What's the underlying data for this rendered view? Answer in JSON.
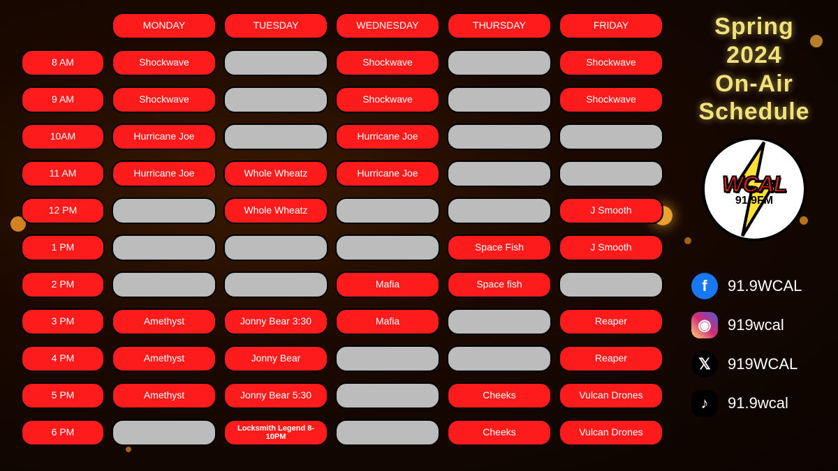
{
  "title_lines": [
    "Spring 2024",
    "On-Air",
    "Schedule"
  ],
  "logo": {
    "name": "WCAL",
    "freq": "91.9FM"
  },
  "days": [
    "MONDAY",
    "TUESDAY",
    "WEDNESDAY",
    "THURSDAY",
    "FRIDAY"
  ],
  "times": [
    "8 AM",
    "9 AM",
    "10AM",
    "11 AM",
    "12 PM",
    "1 PM",
    "2 PM",
    "3 PM",
    "4 PM",
    "5 PM",
    "6 PM"
  ],
  "rows": [
    [
      {
        "t": "Shockwave",
        "c": "red"
      },
      {
        "t": "",
        "c": "grey"
      },
      {
        "t": "Shockwave",
        "c": "red"
      },
      {
        "t": "",
        "c": "grey"
      },
      {
        "t": "Shockwave",
        "c": "red"
      }
    ],
    [
      {
        "t": "Shockwave",
        "c": "red"
      },
      {
        "t": "",
        "c": "grey"
      },
      {
        "t": "Shockwave",
        "c": "red"
      },
      {
        "t": "",
        "c": "grey"
      },
      {
        "t": "Shockwave",
        "c": "red"
      }
    ],
    [
      {
        "t": "Hurricane Joe",
        "c": "red"
      },
      {
        "t": "",
        "c": "grey"
      },
      {
        "t": "Hurricane Joe",
        "c": "red"
      },
      {
        "t": "",
        "c": "grey"
      },
      {
        "t": "",
        "c": "grey"
      }
    ],
    [
      {
        "t": "Hurricane Joe",
        "c": "red"
      },
      {
        "t": "Whole Wheatz",
        "c": "red"
      },
      {
        "t": "Hurricane Joe",
        "c": "red"
      },
      {
        "t": "",
        "c": "grey"
      },
      {
        "t": "",
        "c": "grey"
      }
    ],
    [
      {
        "t": "",
        "c": "grey"
      },
      {
        "t": "Whole Wheatz",
        "c": "red"
      },
      {
        "t": "",
        "c": "grey"
      },
      {
        "t": "",
        "c": "grey"
      },
      {
        "t": "J Smooth",
        "c": "red"
      }
    ],
    [
      {
        "t": "",
        "c": "grey"
      },
      {
        "t": "",
        "c": "grey"
      },
      {
        "t": "",
        "c": "grey"
      },
      {
        "t": "Space Fish",
        "c": "red"
      },
      {
        "t": "J Smooth",
        "c": "red"
      }
    ],
    [
      {
        "t": "",
        "c": "grey"
      },
      {
        "t": "",
        "c": "grey"
      },
      {
        "t": "Mafia",
        "c": "red"
      },
      {
        "t": "Space fish",
        "c": "red"
      },
      {
        "t": "",
        "c": "grey"
      }
    ],
    [
      {
        "t": "Amethyst",
        "c": "red"
      },
      {
        "t": "Jonny Bear 3:30",
        "c": "red"
      },
      {
        "t": "Mafia",
        "c": "red"
      },
      {
        "t": "",
        "c": "grey"
      },
      {
        "t": "Reaper",
        "c": "red"
      }
    ],
    [
      {
        "t": "Amethyst",
        "c": "red"
      },
      {
        "t": "Jonny Bear",
        "c": "red"
      },
      {
        "t": "",
        "c": "grey"
      },
      {
        "t": "",
        "c": "grey"
      },
      {
        "t": "Reaper",
        "c": "red"
      }
    ],
    [
      {
        "t": "Amethyst",
        "c": "red"
      },
      {
        "t": "Jonny Bear 5:30",
        "c": "red"
      },
      {
        "t": "",
        "c": "grey"
      },
      {
        "t": "Cheeks",
        "c": "red"
      },
      {
        "t": "Vulcan Drones",
        "c": "red"
      }
    ],
    [
      {
        "t": "",
        "c": "grey"
      },
      {
        "t": "Locksmith Legend 8-10PM",
        "c": "red",
        "small": true
      },
      {
        "t": "",
        "c": "grey"
      },
      {
        "t": "Cheeks",
        "c": "red"
      },
      {
        "t": "Vulcan Drones",
        "c": "red"
      }
    ]
  ],
  "socials": [
    {
      "icon": "fb",
      "glyph": "f",
      "handle": "91.9WCAL"
    },
    {
      "icon": "ig",
      "glyph": "◉",
      "handle": "919wcal"
    },
    {
      "icon": "xx",
      "glyph": "𝕏",
      "handle": "919WCAL"
    },
    {
      "icon": "tt",
      "glyph": "♪",
      "handle": "91.9wcal"
    }
  ],
  "colors": {
    "red": "#fd1b1b",
    "grey": "#bcbcbc",
    "title": "#f3e27a"
  }
}
